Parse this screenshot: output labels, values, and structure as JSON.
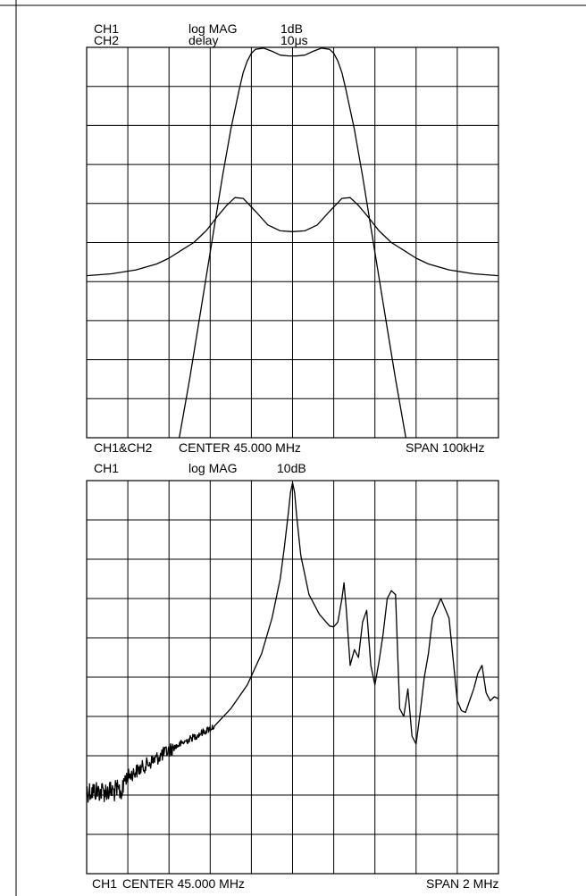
{
  "chart_data": [
    {
      "type": "line",
      "header": {
        "ch1": "CH1",
        "ch2": "CH2",
        "format1": "log MAG",
        "format2": "delay",
        "scale1": "1dB",
        "scale2": "10μs"
      },
      "footer": {
        "channel": "CH1&CH2",
        "center": "CENTER 45.000 MHz",
        "span": "SPAN 100kHz"
      },
      "grid": {
        "divisions_x": 10,
        "divisions_y": 10,
        "visible": true
      },
      "x_range_kHz": [
        -50,
        50
      ],
      "series": [
        {
          "name": "CH1",
          "x": [
            -27.5,
            -25,
            -23,
            -21,
            -19,
            -17,
            -15,
            -13,
            -12,
            -11,
            -10,
            -9,
            -7,
            -5,
            -3,
            -1,
            0,
            1,
            3,
            5,
            7,
            9,
            10,
            11,
            12,
            13,
            15,
            17,
            19,
            21,
            23,
            25,
            27.5
          ],
          "div_from_top": [
            10.0,
            8.5,
            7.2,
            5.9,
            4.6,
            3.3,
            2.1,
            1.1,
            0.65,
            0.35,
            0.15,
            0.05,
            0.02,
            0.1,
            0.2,
            0.22,
            0.22,
            0.22,
            0.2,
            0.1,
            0.02,
            0.05,
            0.15,
            0.35,
            0.65,
            1.1,
            2.1,
            3.3,
            4.6,
            5.9,
            7.2,
            8.5,
            10.0
          ]
        },
        {
          "name": "CH2",
          "x": [
            -50,
            -44,
            -38,
            -33,
            -30,
            -27,
            -24,
            -21,
            -18,
            -16,
            -14,
            -12,
            -9,
            -6,
            -3,
            0,
            3,
            6,
            9,
            12,
            14,
            16,
            18,
            21,
            24,
            27,
            30,
            33,
            38,
            44,
            50
          ],
          "div_from_top": [
            5.85,
            5.8,
            5.7,
            5.55,
            5.4,
            5.2,
            5.0,
            4.7,
            4.3,
            4.05,
            3.85,
            3.87,
            4.2,
            4.55,
            4.7,
            4.72,
            4.7,
            4.55,
            4.2,
            3.87,
            3.85,
            4.05,
            4.3,
            4.7,
            5.0,
            5.2,
            5.4,
            5.55,
            5.7,
            5.8,
            5.85
          ]
        }
      ]
    },
    {
      "type": "line",
      "header": {
        "ch1": "CH1",
        "format1": "log MAG",
        "scale1": "10dB"
      },
      "footer": {
        "channel": "CH1",
        "center": "CENTER 45.000 MHz",
        "span": "SPAN 2 MHz"
      },
      "grid": {
        "divisions_x": 10,
        "divisions_y": 10,
        "visible": true
      },
      "x_range_MHz": [
        -1.0,
        1.0
      ],
      "series": [
        {
          "name": "CH1",
          "noise_segments": [
            {
              "x_from": -1.0,
              "x_to": -0.82,
              "level_from": 7.9,
              "level_to": 7.9,
              "amplitude": 0.28
            },
            {
              "x_from": -0.82,
              "x_to": -0.58,
              "level_from": 7.6,
              "level_to": 6.8,
              "amplitude": 0.18
            },
            {
              "x_from": -0.58,
              "x_to": -0.38,
              "level_from": 6.8,
              "level_to": 6.25,
              "amplitude": 0.09
            }
          ],
          "x": [
            -0.38,
            -0.3,
            -0.22,
            -0.15,
            -0.1,
            -0.06,
            -0.04,
            -0.02,
            -0.01,
            0.0,
            0.01,
            0.02,
            0.04,
            0.08,
            0.13,
            0.18,
            0.2,
            0.22,
            0.24,
            0.25,
            0.26,
            0.28,
            0.3,
            0.32,
            0.34,
            0.36,
            0.38,
            0.4,
            0.42,
            0.44,
            0.46,
            0.48,
            0.5,
            0.52,
            0.54,
            0.56,
            0.58,
            0.6,
            0.62,
            0.64,
            0.66,
            0.68,
            0.72,
            0.76,
            0.8,
            0.82,
            0.84,
            0.86,
            0.88,
            0.9,
            0.92,
            0.94,
            0.96,
            0.98,
            1.0
          ],
          "div_from_top": [
            6.25,
            5.8,
            5.2,
            4.4,
            3.5,
            2.5,
            1.7,
            0.8,
            0.3,
            0.05,
            0.3,
            0.9,
            1.9,
            2.9,
            3.4,
            3.7,
            3.72,
            3.6,
            3.0,
            2.6,
            3.2,
            4.7,
            4.3,
            4.5,
            3.6,
            3.3,
            4.7,
            5.2,
            4.6,
            3.9,
            3.0,
            2.8,
            2.9,
            5.8,
            6.0,
            5.3,
            6.5,
            6.7,
            5.9,
            5.0,
            4.4,
            3.5,
            3.0,
            3.5,
            5.6,
            5.85,
            5.9,
            5.6,
            5.3,
            4.9,
            4.7,
            5.4,
            5.6,
            5.5,
            5.55
          ]
        }
      ]
    }
  ]
}
